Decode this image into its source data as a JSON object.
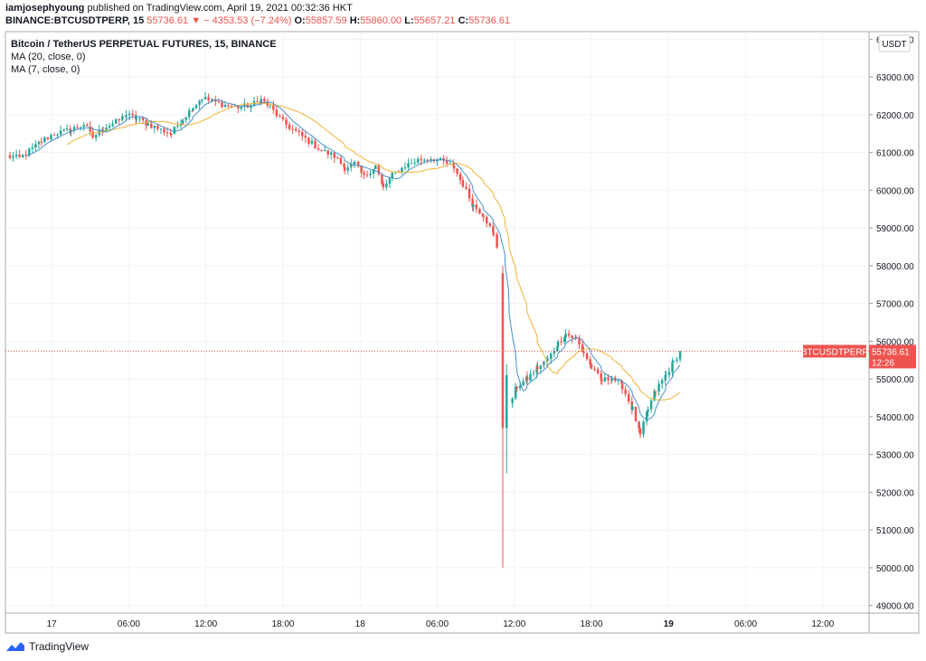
{
  "header": {
    "publisher": "iamjosephyoung",
    "published_text": "published on TradingView.com, April 19, 2021 00:32:36 HKT",
    "symbol": "BINANCE:BTCUSDTPERP, 15",
    "last": "55736.61",
    "change": "− 4353.53 (−7.24%)",
    "o_label": "O:",
    "o": "55857.59",
    "h_label": "H:",
    "h": "55860.00",
    "l_label": "L:",
    "l": "55657.21",
    "c_label": "C:",
    "c": "55736.61"
  },
  "legend": {
    "title": "Bitcoin / TetherUS PERPETUAL FUTURES, 15, BINANCE",
    "ma20": "MA (20, close, 0)",
    "ma7": "MA (7, close, 0)"
  },
  "price_tag": {
    "symbol": "BTCUSDTPERP",
    "price": "55736.61",
    "countdown": "12:26"
  },
  "footer": {
    "brand": "TradingView"
  },
  "colors": {
    "up": "#26a69a",
    "down": "#ef5350",
    "ma20": "#f2b233",
    "ma7": "#4a90c8"
  },
  "chart_data": {
    "type": "candlestick",
    "currency": "USDT",
    "ylim": [
      48800,
      64200
    ],
    "y_ticks": [
      49000,
      50000,
      51000,
      52000,
      53000,
      54000,
      55000,
      56000,
      57000,
      58000,
      59000,
      60000,
      61000,
      62000,
      63000,
      64000
    ],
    "x_ticks": [
      {
        "label": "17",
        "bold": false,
        "hours": 0
      },
      {
        "label": "06:00",
        "bold": false,
        "hours": 6
      },
      {
        "label": "12:00",
        "bold": false,
        "hours": 12
      },
      {
        "label": "18:00",
        "bold": false,
        "hours": 18
      },
      {
        "label": "18",
        "bold": false,
        "hours": 24
      },
      {
        "label": "06:00",
        "bold": false,
        "hours": 30
      },
      {
        "label": "12:00",
        "bold": false,
        "hours": 36
      },
      {
        "label": "18:00",
        "bold": false,
        "hours": 42
      },
      {
        "label": "19",
        "bold": true,
        "hours": 48
      },
      {
        "label": "06:00",
        "bold": false,
        "hours": 54
      },
      {
        "label": "12:00",
        "bold": false,
        "hours": 60
      }
    ],
    "xlim_hours": [
      -3.6,
      63.6
    ],
    "last_price": 55736.61,
    "anchors": [
      [
        -3.5,
        60900
      ],
      [
        -2.5,
        60850
      ],
      [
        -1.5,
        61100
      ],
      [
        -0.8,
        61300
      ],
      [
        0.2,
        61500
      ],
      [
        1.5,
        61600
      ],
      [
        2.5,
        61750
      ],
      [
        3.2,
        61400
      ],
      [
        4.0,
        61650
      ],
      [
        5.0,
        61800
      ],
      [
        5.8,
        62000
      ],
      [
        6.6,
        61900
      ],
      [
        7.5,
        61750
      ],
      [
        8.5,
        61600
      ],
      [
        9.3,
        61500
      ],
      [
        10.2,
        61900
      ],
      [
        11.0,
        62200
      ],
      [
        11.7,
        62450
      ],
      [
        12.5,
        62350
      ],
      [
        13.5,
        62250
      ],
      [
        14.5,
        62200
      ],
      [
        15.5,
        62250
      ],
      [
        16.3,
        62400
      ],
      [
        17.0,
        62200
      ],
      [
        18.0,
        61800
      ],
      [
        19.0,
        61550
      ],
      [
        20.0,
        61300
      ],
      [
        21.0,
        61050
      ],
      [
        22.0,
        60900
      ],
      [
        22.8,
        60600
      ],
      [
        23.6,
        60700
      ],
      [
        24.3,
        60350
      ],
      [
        25.2,
        60650
      ],
      [
        25.8,
        60050
      ],
      [
        26.5,
        60400
      ],
      [
        27.5,
        60650
      ],
      [
        28.5,
        60800
      ],
      [
        29.5,
        60850
      ],
      [
        30.5,
        60750
      ],
      [
        31.3,
        60600
      ],
      [
        32.0,
        60150
      ],
      [
        32.8,
        59600
      ],
      [
        33.6,
        59350
      ],
      [
        34.4,
        58800
      ],
      [
        35.0,
        58100
      ],
      [
        35.3,
        56500
      ],
      [
        35.6,
        54300
      ],
      [
        36.2,
        54800
      ],
      [
        37.0,
        55000
      ],
      [
        37.8,
        55300
      ],
      [
        38.6,
        55500
      ],
      [
        39.4,
        55950
      ],
      [
        40.0,
        56200
      ],
      [
        40.8,
        56050
      ],
      [
        41.4,
        55700
      ],
      [
        42.0,
        55300
      ],
      [
        42.8,
        54950
      ],
      [
        43.6,
        55050
      ],
      [
        44.4,
        54800
      ],
      [
        45.2,
        54200
      ],
      [
        45.8,
        53500
      ],
      [
        46.4,
        54200
      ],
      [
        47.0,
        54700
      ],
      [
        47.8,
        55100
      ],
      [
        48.4,
        55450
      ],
      [
        48.9,
        55736.61
      ]
    ],
    "special_candles": [
      {
        "hours": 35.1,
        "open": 57800,
        "high": 58000,
        "low": 50000,
        "close": 53700
      },
      {
        "hours": 35.4,
        "open": 53700,
        "high": 55400,
        "low": 52500,
        "close": 55100
      }
    ],
    "hours_per_bar": 0.25,
    "ma_periods": [
      20,
      7
    ]
  }
}
